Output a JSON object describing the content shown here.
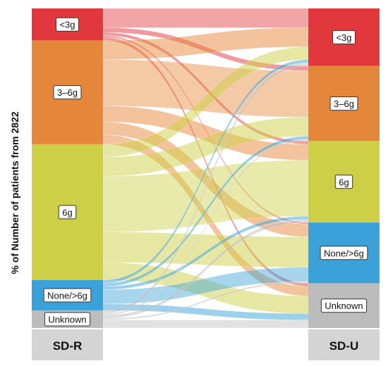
{
  "chart_data": {
    "type": "sankey",
    "ylabel": "% of Number of patients from 2822",
    "left_axis_label": "SD-R",
    "right_axis_label": "SD-U",
    "colors": {
      "lt3g": "#e0383c",
      "g3to6": "#e5873a",
      "g6": "#cdd046",
      "none_gt6g": "#3aa2d8",
      "unknown": "#bcbcbc",
      "axis_box": "#d4d4d4"
    },
    "left_nodes": [
      {
        "key": "lt3g",
        "label": "<3g",
        "value": 10
      },
      {
        "key": "g3to6",
        "label": "3–6g",
        "value": 32.5
      },
      {
        "key": "g6",
        "label": "6g",
        "value": 42.5
      },
      {
        "key": "none_gt6g",
        "label": "None/>6g",
        "value": 9.5
      },
      {
        "key": "unknown",
        "label": "Unknown",
        "value": 5.5
      }
    ],
    "right_nodes": [
      {
        "key": "lt3g",
        "label": "<3g",
        "value": 18
      },
      {
        "key": "g3to6",
        "label": "3–6g",
        "value": 23.5
      },
      {
        "key": "g6",
        "label": "6g",
        "value": 25.5
      },
      {
        "key": "none_gt6g",
        "label": "None/>6g",
        "value": 19
      },
      {
        "key": "unknown",
        "label": "Unknown",
        "value": 14
      }
    ],
    "flows": [
      {
        "from": "lt3g",
        "to": "lt3g",
        "value": 6
      },
      {
        "from": "lt3g",
        "to": "g3to6",
        "value": 1.5
      },
      {
        "from": "lt3g",
        "to": "g6",
        "value": 1
      },
      {
        "from": "lt3g",
        "to": "none_gt6g",
        "value": 0.5
      },
      {
        "from": "lt3g",
        "to": "unknown",
        "value": 1
      },
      {
        "from": "g3to6",
        "to": "lt3g",
        "value": 6
      },
      {
        "from": "g3to6",
        "to": "g3to6",
        "value": 14.5
      },
      {
        "from": "g3to6",
        "to": "g6",
        "value": 5
      },
      {
        "from": "g3to6",
        "to": "none_gt6g",
        "value": 4
      },
      {
        "from": "g3to6",
        "to": "unknown",
        "value": 3
      },
      {
        "from": "g6",
        "to": "lt3g",
        "value": 4
      },
      {
        "from": "g6",
        "to": "g3to6",
        "value": 6
      },
      {
        "from": "g6",
        "to": "g6",
        "value": 17.5
      },
      {
        "from": "g6",
        "to": "none_gt6g",
        "value": 9.5
      },
      {
        "from": "g6",
        "to": "unknown",
        "value": 5.5
      },
      {
        "from": "none_gt6g",
        "to": "lt3g",
        "value": 1
      },
      {
        "from": "none_gt6g",
        "to": "g3to6",
        "value": 1
      },
      {
        "from": "none_gt6g",
        "to": "g6",
        "value": 1
      },
      {
        "from": "none_gt6g",
        "to": "none_gt6g",
        "value": 4.5
      },
      {
        "from": "none_gt6g",
        "to": "unknown",
        "value": 2
      },
      {
        "from": "unknown",
        "to": "lt3g",
        "value": 1
      },
      {
        "from": "unknown",
        "to": "g3to6",
        "value": 0.5
      },
      {
        "from": "unknown",
        "to": "g6",
        "value": 1
      },
      {
        "from": "unknown",
        "to": "none_gt6g",
        "value": 0.5
      },
      {
        "from": "unknown",
        "to": "unknown",
        "value": 2.5
      }
    ]
  }
}
